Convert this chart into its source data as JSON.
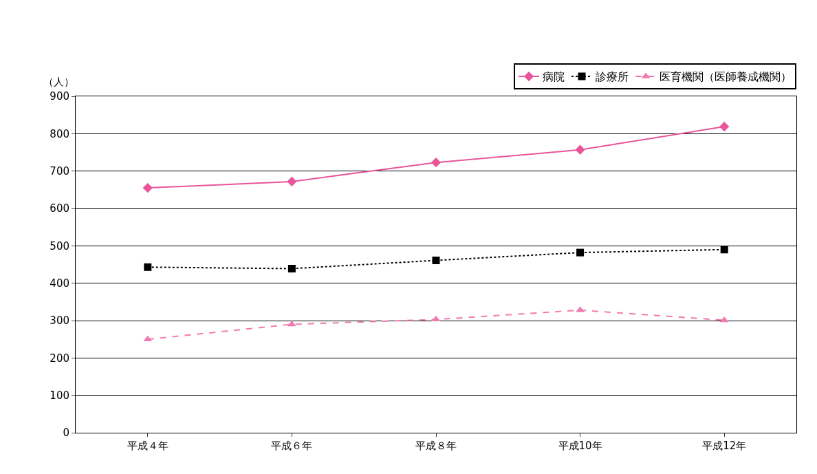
{
  "chart_data": {
    "type": "line",
    "ylabel": "（人）",
    "categories": [
      "平成４年",
      "平成６年",
      "平成８年",
      "平成10年",
      "平成12年"
    ],
    "series": [
      {
        "name": "病院",
        "color": "#e8559a",
        "marker": "diamond",
        "line_style": "solid",
        "values": [
          655,
          672,
          723,
          757,
          819
        ]
      },
      {
        "name": "診療所",
        "color": "#000000",
        "marker": "square",
        "line_style": "dotted",
        "values": [
          443,
          439,
          461,
          482,
          490
        ]
      },
      {
        "name": "医育機関（医師養成機関）",
        "color": "#f07ab0",
        "marker": "triangle",
        "line_style": "dashed",
        "values": [
          250,
          290,
          303,
          328,
          301
        ]
      }
    ],
    "ylim": [
      0,
      900
    ],
    "yticks": [
      0,
      100,
      200,
      300,
      400,
      500,
      600,
      700,
      800,
      900
    ],
    "grid": "y",
    "legend": "top right"
  }
}
